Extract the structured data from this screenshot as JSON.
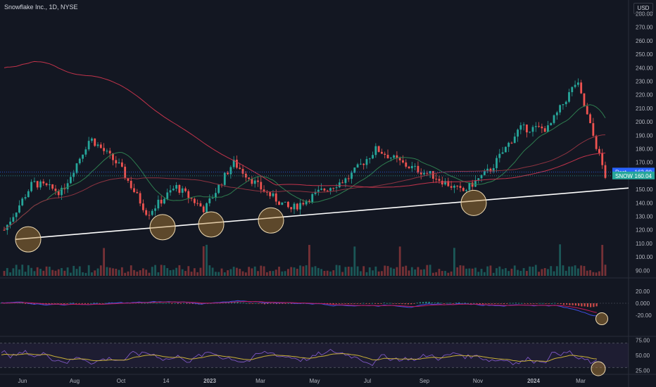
{
  "header": {
    "symbol_title": "Snowflake Inc., 1D, NYSE",
    "currency": "USD"
  },
  "colors": {
    "background": "#131722",
    "up_candle": "#26a69a",
    "down_candle": "#ef5350",
    "ma_short": "#2e7d4f",
    "ma_long": "#c2334b",
    "ma_mid": "#8c3340",
    "trendline": "#ffffff",
    "highlight_fill": "rgba(184,134,56,0.45)",
    "highlight_stroke": "#f0dcb4",
    "macd_line": "#3f51e8",
    "signal_line": "#c2185b",
    "rsi_line": "#7e57c2",
    "rsi_ma": "#c9b037",
    "axis_text": "#b2b5be",
    "post_badge": "#2962ff",
    "last_badge": "#26a69a"
  },
  "price_axis": {
    "ticks": [
      280,
      270,
      260,
      250,
      240,
      230,
      220,
      210,
      200,
      190,
      180,
      170,
      160,
      150,
      140,
      130,
      120,
      110,
      100,
      90
    ],
    "min": 86,
    "max": 286
  },
  "macd_axis": {
    "ticks": [
      "20.00",
      "0.000",
      "-20.00"
    ]
  },
  "rsi_axis": {
    "ticks": [
      "75.00",
      "50.00",
      "25.00"
    ],
    "upper": 70,
    "lower": 30
  },
  "time_axis": {
    "labels": [
      "Jun",
      "Aug",
      "Oct",
      "14",
      "2023",
      "Mar",
      "May",
      "Jul",
      "Sep",
      "Nov",
      "2024",
      "Mar"
    ]
  },
  "badges": {
    "post_label": "Post",
    "post_value": "162.90",
    "last_label": "SNOW",
    "last_value": "160.04"
  },
  "chart_data": {
    "type": "candlestick",
    "title": "Snowflake Inc., 1D, NYSE",
    "ylabel": "USD",
    "ylim": [
      86,
      286
    ],
    "price_anchors": [
      [
        "Jun",
        120
      ],
      [
        "Jul",
        155
      ],
      [
        "Aug",
        148
      ],
      [
        "Sep",
        188
      ],
      [
        "Oct",
        168
      ],
      [
        "Nov",
        132
      ],
      [
        "Dec",
        152
      ],
      [
        "Jan",
        135
      ],
      [
        "Feb",
        170
      ],
      [
        "Mar",
        150
      ],
      [
        "Apr",
        135
      ],
      [
        "May",
        148
      ],
      [
        "Jun",
        158
      ],
      [
        "Jul",
        180
      ],
      [
        "Aug",
        168
      ],
      [
        "Sep",
        160
      ],
      [
        "Oct",
        148
      ],
      [
        "Nov",
        165
      ],
      [
        "Dec",
        195
      ],
      [
        "Jan",
        195
      ],
      [
        "Feb",
        230
      ],
      [
        "Mar",
        160
      ]
    ],
    "trendline": {
      "start": [
        "Jun",
        113
      ],
      "end": [
        "Mar",
        151
      ]
    },
    "highlighted_lows": [
      [
        "Jun",
        113
      ],
      [
        "Oct",
        122
      ],
      [
        "Dec",
        124
      ],
      [
        "Mar",
        127
      ],
      [
        "Nov",
        140
      ]
    ],
    "indicators": [
      "MACD",
      "RSI"
    ]
  }
}
